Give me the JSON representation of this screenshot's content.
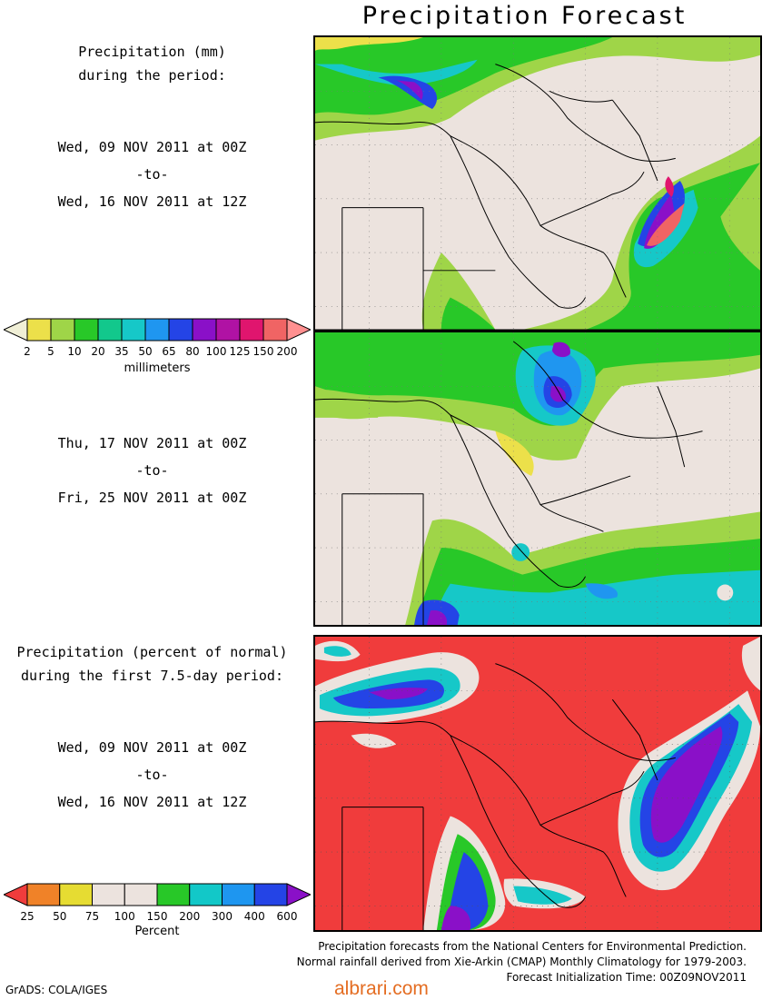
{
  "title": "Precipitation Forecast",
  "panel1_label": {
    "line1": "Precipitation (mm)",
    "line2": "during the period:",
    "start": "Wed, 09 NOV 2011 at 00Z",
    "sep": "-to-",
    "end": "Wed, 16 NOV 2011 at 12Z"
  },
  "panel2_label": {
    "start": "Thu, 17 NOV 2011 at 00Z",
    "sep": "-to-",
    "end": "Fri, 25 NOV 2011 at 00Z"
  },
  "panel3_label": {
    "line1": "Precipitation (percent of normal)",
    "line2": "during the first 7.5-day period:",
    "start": "Wed, 09 NOV 2011 at 00Z",
    "sep": "-to-",
    "end": "Wed, 16 NOV 2011 at 12Z"
  },
  "legend_mm": {
    "unit": "millimeters",
    "ticks": [
      "2",
      "5",
      "10",
      "20",
      "35",
      "50",
      "65",
      "80",
      "100",
      "125",
      "150",
      "200"
    ],
    "colors": [
      "#f0efd6",
      "#ece04a",
      "#9fd548",
      "#28c828",
      "#12c88c",
      "#16c8c8",
      "#1f96f0",
      "#2444e6",
      "#8a10c8",
      "#b012a4",
      "#e0156e",
      "#f06464",
      "#ff9090"
    ]
  },
  "legend_pct": {
    "unit": "Percent",
    "ticks": [
      "25",
      "50",
      "75",
      "100",
      "150",
      "200",
      "300",
      "400",
      "600"
    ],
    "colors": [
      "#f03c3c",
      "#f08228",
      "#e6dc32",
      "#ece3de",
      "#ece3de",
      "#28c828",
      "#12c8c8",
      "#1e96f0",
      "#2444e6",
      "#8a10c8"
    ]
  },
  "credits": {
    "line1": "Precipitation forecasts from the National Centers for Environmental Prediction.",
    "line2": "Normal rainfall derived from Xie-Arkin (CMAP) Monthly Climatology for 1979-2003.",
    "line3": "Forecast Initialization Time: 00Z09NOV2011"
  },
  "software": "GrADS: COLA/IGES",
  "watermark": "albrari.com"
}
